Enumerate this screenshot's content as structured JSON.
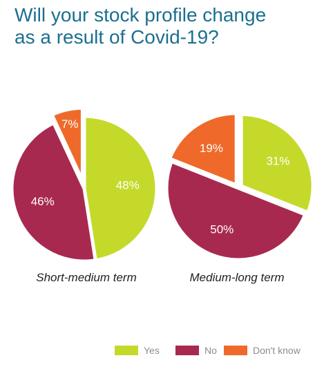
{
  "title": {
    "line1": "Will your stock profile change",
    "line2": "as a result of Covid-19?"
  },
  "colors": {
    "yes": "#c5d92b",
    "no": "#a8294f",
    "dont_know": "#ef6a2a"
  },
  "legend": [
    {
      "key": "yes",
      "label": "Yes"
    },
    {
      "key": "no",
      "label": "No"
    },
    {
      "key": "dont_know",
      "label": "Don't know"
    }
  ],
  "chart_data": [
    {
      "type": "pie",
      "title": "Short-medium term",
      "slices": [
        {
          "key": "yes",
          "label": "Yes",
          "value": 48,
          "display": "48%"
        },
        {
          "key": "no",
          "label": "No",
          "value": 46,
          "display": "46%"
        },
        {
          "key": "dont_know",
          "label": "Don't know",
          "value": 7,
          "display": "7%"
        }
      ]
    },
    {
      "type": "pie",
      "title": "Medium-long term",
      "slices": [
        {
          "key": "yes",
          "label": "Yes",
          "value": 31,
          "display": "31%"
        },
        {
          "key": "no",
          "label": "No",
          "value": 50,
          "display": "50%"
        },
        {
          "key": "dont_know",
          "label": "Don't know",
          "value": 19,
          "display": "19%"
        }
      ]
    }
  ]
}
